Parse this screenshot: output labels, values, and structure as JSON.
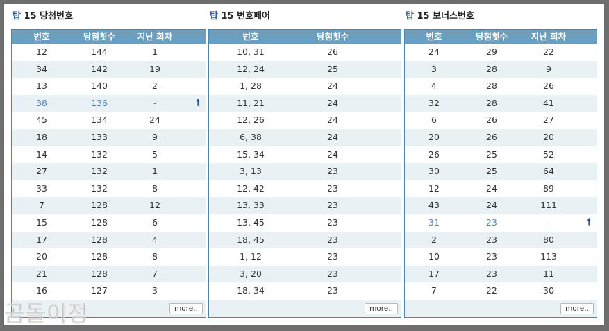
{
  "panels": [
    {
      "title_prefix": "탑",
      "title_rest": " 15 당첨번호",
      "columns": [
        "번호",
        "당첨횟수",
        "지난 회차"
      ],
      "rows": [
        [
          "12",
          "144",
          "1"
        ],
        [
          "34",
          "142",
          "19"
        ],
        [
          "13",
          "140",
          "2"
        ],
        [
          "38",
          "136",
          "-"
        ],
        [
          "45",
          "134",
          "24"
        ],
        [
          "18",
          "133",
          "9"
        ],
        [
          "14",
          "132",
          "5"
        ],
        [
          "27",
          "132",
          "1"
        ],
        [
          "33",
          "132",
          "8"
        ],
        [
          "7",
          "128",
          "12"
        ],
        [
          "15",
          "128",
          "6"
        ],
        [
          "17",
          "128",
          "4"
        ],
        [
          "20",
          "128",
          "8"
        ],
        [
          "21",
          "128",
          "7"
        ],
        [
          "16",
          "127",
          "3"
        ]
      ],
      "more_label": "more.."
    },
    {
      "title_prefix": "탑",
      "title_rest": " 15 번호페어",
      "columns": [
        "번호",
        "당첨횟수"
      ],
      "rows": [
        [
          "10, 31",
          "26"
        ],
        [
          "12, 24",
          "25"
        ],
        [
          "1, 28",
          "24"
        ],
        [
          "11, 21",
          "24"
        ],
        [
          "12, 26",
          "24"
        ],
        [
          "6, 38",
          "24"
        ],
        [
          "15, 34",
          "24"
        ],
        [
          "3, 13",
          "23"
        ],
        [
          "12, 42",
          "23"
        ],
        [
          "13, 33",
          "23"
        ],
        [
          "13, 45",
          "23"
        ],
        [
          "18, 45",
          "23"
        ],
        [
          "1, 12",
          "23"
        ],
        [
          "3, 20",
          "23"
        ],
        [
          "18, 34",
          "23"
        ]
      ],
      "more_label": "more.."
    },
    {
      "title_prefix": "탑",
      "title_rest": " 15 보너스번호",
      "columns": [
        "번호",
        "당첨횟수",
        "지난 회차"
      ],
      "rows": [
        [
          "24",
          "29",
          "22"
        ],
        [
          "3",
          "28",
          "9"
        ],
        [
          "4",
          "28",
          "26"
        ],
        [
          "32",
          "28",
          "41"
        ],
        [
          "6",
          "26",
          "27"
        ],
        [
          "20",
          "26",
          "20"
        ],
        [
          "26",
          "25",
          "52"
        ],
        [
          "30",
          "25",
          "64"
        ],
        [
          "12",
          "24",
          "89"
        ],
        [
          "43",
          "24",
          "111"
        ],
        [
          "31",
          "23",
          "-"
        ],
        [
          "2",
          "23",
          "80"
        ],
        [
          "10",
          "23",
          "113"
        ],
        [
          "17",
          "23",
          "11"
        ],
        [
          "7",
          "22",
          "30"
        ]
      ],
      "more_label": "more.."
    }
  ],
  "watermark": "곰돌이정",
  "highlight_rows": {
    "0": 3,
    "2": 10
  },
  "arrow_glyph": "🠕",
  "colors": {
    "header_bg": "#6b9fc0",
    "alt_row_bg": "#eaf1f5",
    "highlight_text": "#4f7fb8",
    "arrow": "#1c4f9e",
    "title_accent": "#2f5f9e"
  }
}
